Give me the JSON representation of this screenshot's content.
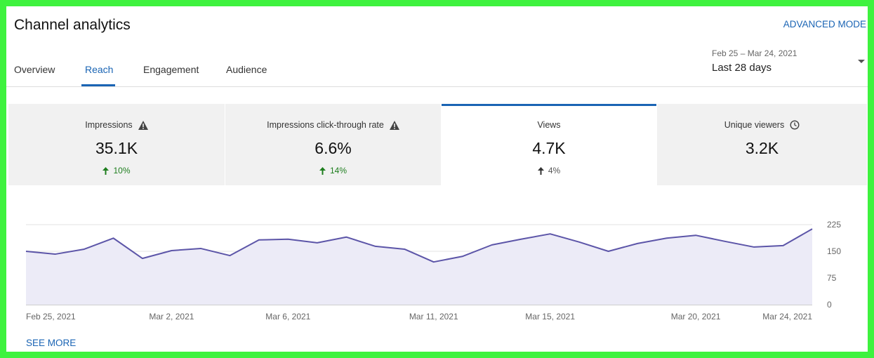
{
  "header": {
    "title": "Channel analytics",
    "advanced_mode": "ADVANCED MODE"
  },
  "tabs": [
    "Overview",
    "Reach",
    "Engagement",
    "Audience"
  ],
  "date_range": {
    "range": "Feb 25 – Mar 24, 2021",
    "label": "Last 28 days"
  },
  "metrics": [
    {
      "label": "Impressions",
      "value": "35.1K",
      "change": "10%"
    },
    {
      "label": "Impressions click-through rate",
      "value": "6.6%",
      "change": "14%"
    },
    {
      "label": "Views",
      "value": "4.7K",
      "change": "4%"
    },
    {
      "label": "Unique viewers",
      "value": "3.2K"
    }
  ],
  "chart_data": {
    "type": "line",
    "x": [
      "Feb 25, 2021",
      null,
      null,
      null,
      null,
      "Mar 2, 2021",
      null,
      null,
      null,
      "Mar 6, 2021",
      null,
      null,
      null,
      null,
      "Mar 11, 2021",
      null,
      null,
      null,
      "Mar 15, 2021",
      null,
      null,
      null,
      null,
      "Mar 20, 2021",
      null,
      null,
      null,
      "Mar 24, 2021"
    ],
    "values": [
      150,
      142,
      156,
      187,
      130,
      152,
      158,
      138,
      182,
      184,
      174,
      190,
      164,
      156,
      120,
      136,
      168,
      184,
      199,
      176,
      150,
      172,
      187,
      195,
      178,
      162,
      166,
      213
    ],
    "color": "#5c55a8",
    "fill": "#ecebf7",
    "ylim": [
      0,
      225
    ],
    "yticks": [
      0,
      75,
      150,
      225
    ],
    "grid": true
  },
  "footer": {
    "see_more": "SEE MORE"
  }
}
